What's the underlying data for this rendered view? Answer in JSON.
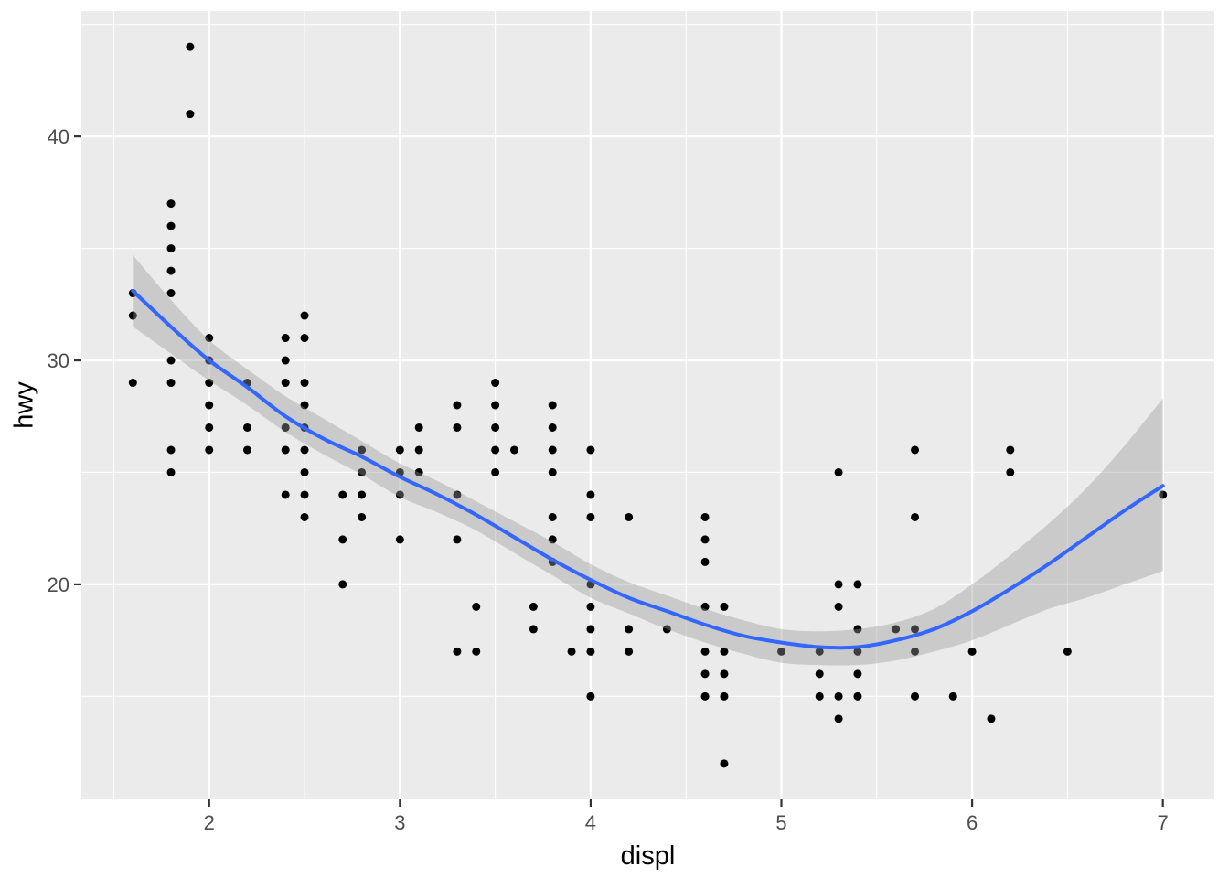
{
  "chart_data": {
    "type": "scatter",
    "title": "",
    "xlabel": "displ",
    "ylabel": "hwy",
    "legend": "none",
    "grid": true,
    "x_ticks": [
      2,
      3,
      4,
      5,
      6,
      7
    ],
    "y_ticks": [
      20,
      30,
      40
    ],
    "x_minor": [
      1.5,
      2.5,
      3.5,
      4.5,
      5.5,
      6.5
    ],
    "y_minor": [
      15,
      25,
      35,
      45
    ],
    "x_domain": [
      1.33,
      7.27
    ],
    "y_domain": [
      10.4,
      45.6
    ],
    "x_data_range": [
      1.6,
      7.0
    ],
    "y_data_range": [
      12,
      44
    ],
    "points": [
      [
        1.6,
        33
      ],
      [
        1.6,
        32
      ],
      [
        1.6,
        29
      ],
      [
        1.8,
        37
      ],
      [
        1.8,
        36
      ],
      [
        1.8,
        35
      ],
      [
        1.8,
        34
      ],
      [
        1.8,
        33
      ],
      [
        1.8,
        30
      ],
      [
        1.8,
        29
      ],
      [
        1.8,
        26
      ],
      [
        1.8,
        25
      ],
      [
        1.9,
        44
      ],
      [
        1.9,
        41
      ],
      [
        2.0,
        31
      ],
      [
        2.0,
        30
      ],
      [
        2.0,
        29
      ],
      [
        2.0,
        28
      ],
      [
        2.0,
        27
      ],
      [
        2.0,
        26
      ],
      [
        2.2,
        29
      ],
      [
        2.2,
        27
      ],
      [
        2.2,
        26
      ],
      [
        2.4,
        31
      ],
      [
        2.4,
        30
      ],
      [
        2.4,
        29
      ],
      [
        2.4,
        27
      ],
      [
        2.4,
        26
      ],
      [
        2.4,
        24
      ],
      [
        2.5,
        32
      ],
      [
        2.5,
        31
      ],
      [
        2.5,
        29
      ],
      [
        2.5,
        28
      ],
      [
        2.5,
        27
      ],
      [
        2.5,
        26
      ],
      [
        2.5,
        25
      ],
      [
        2.5,
        24
      ],
      [
        2.5,
        23
      ],
      [
        2.7,
        24
      ],
      [
        2.7,
        22
      ],
      [
        2.7,
        20
      ],
      [
        2.8,
        26
      ],
      [
        2.8,
        25
      ],
      [
        2.8,
        24
      ],
      [
        2.8,
        23
      ],
      [
        3.0,
        26
      ],
      [
        3.0,
        25
      ],
      [
        3.0,
        24
      ],
      [
        3.0,
        22
      ],
      [
        3.1,
        27
      ],
      [
        3.1,
        26
      ],
      [
        3.1,
        25
      ],
      [
        3.3,
        28
      ],
      [
        3.3,
        27
      ],
      [
        3.3,
        24
      ],
      [
        3.3,
        22
      ],
      [
        3.3,
        17
      ],
      [
        3.4,
        19
      ],
      [
        3.4,
        17
      ],
      [
        3.5,
        29
      ],
      [
        3.5,
        28
      ],
      [
        3.5,
        27
      ],
      [
        3.5,
        26
      ],
      [
        3.5,
        25
      ],
      [
        3.6,
        26
      ],
      [
        3.7,
        19
      ],
      [
        3.7,
        18
      ],
      [
        3.8,
        28
      ],
      [
        3.8,
        27
      ],
      [
        3.8,
        26
      ],
      [
        3.8,
        25
      ],
      [
        3.8,
        23
      ],
      [
        3.8,
        22
      ],
      [
        3.8,
        21
      ],
      [
        3.9,
        17
      ],
      [
        4.0,
        26
      ],
      [
        4.0,
        24
      ],
      [
        4.0,
        23
      ],
      [
        4.0,
        20
      ],
      [
        4.0,
        19
      ],
      [
        4.0,
        18
      ],
      [
        4.0,
        17
      ],
      [
        4.0,
        15
      ],
      [
        4.2,
        23
      ],
      [
        4.2,
        18
      ],
      [
        4.2,
        17
      ],
      [
        4.4,
        18
      ],
      [
        4.6,
        23
      ],
      [
        4.6,
        22
      ],
      [
        4.6,
        21
      ],
      [
        4.6,
        19
      ],
      [
        4.6,
        17
      ],
      [
        4.6,
        16
      ],
      [
        4.6,
        15
      ],
      [
        4.7,
        19
      ],
      [
        4.7,
        17
      ],
      [
        4.7,
        16
      ],
      [
        4.7,
        15
      ],
      [
        4.7,
        12
      ],
      [
        5.0,
        17
      ],
      [
        5.2,
        17
      ],
      [
        5.2,
        16
      ],
      [
        5.2,
        15
      ],
      [
        5.3,
        25
      ],
      [
        5.3,
        20
      ],
      [
        5.3,
        19
      ],
      [
        5.3,
        15
      ],
      [
        5.3,
        14
      ],
      [
        5.4,
        20
      ],
      [
        5.4,
        18
      ],
      [
        5.4,
        17
      ],
      [
        5.4,
        16
      ],
      [
        5.4,
        15
      ],
      [
        5.6,
        18
      ],
      [
        5.7,
        26
      ],
      [
        5.7,
        23
      ],
      [
        5.7,
        18
      ],
      [
        5.7,
        17
      ],
      [
        5.7,
        15
      ],
      [
        5.9,
        15
      ],
      [
        6.0,
        17
      ],
      [
        6.1,
        14
      ],
      [
        6.2,
        26
      ],
      [
        6.2,
        25
      ],
      [
        6.5,
        17
      ],
      [
        7.0,
        24
      ]
    ],
    "smooth": {
      "x": [
        1.6,
        1.8,
        2.0,
        2.2,
        2.4,
        2.6,
        2.8,
        3.0,
        3.2,
        3.4,
        3.6,
        3.8,
        4.0,
        4.2,
        4.4,
        4.6,
        4.8,
        5.0,
        5.2,
        5.4,
        5.6,
        5.8,
        6.0,
        6.2,
        6.4,
        6.6,
        6.8,
        7.0
      ],
      "y": [
        33.1,
        31.5,
        30.0,
        28.8,
        27.5,
        26.5,
        25.7,
        24.8,
        24.0,
        23.1,
        22.1,
        21.1,
        20.2,
        19.4,
        18.8,
        18.2,
        17.7,
        17.4,
        17.2,
        17.2,
        17.5,
        18.0,
        18.8,
        19.8,
        20.9,
        22.1,
        23.3,
        24.4
      ],
      "upper": [
        34.7,
        32.7,
        30.9,
        29.6,
        28.4,
        27.4,
        26.4,
        25.4,
        24.6,
        23.7,
        22.8,
        21.9,
        20.9,
        20.1,
        19.5,
        18.9,
        18.4,
        18.0,
        17.9,
        18.0,
        18.3,
        18.9,
        20.0,
        21.3,
        22.7,
        24.3,
        26.2,
        28.3
      ],
      "lower": [
        31.5,
        30.3,
        29.1,
        28.0,
        26.8,
        25.8,
        24.9,
        23.9,
        23.2,
        22.4,
        21.4,
        20.4,
        19.4,
        18.7,
        18.0,
        17.4,
        16.9,
        16.5,
        16.4,
        16.4,
        16.6,
        17.0,
        17.5,
        18.2,
        18.9,
        19.4,
        20.0,
        20.6
      ]
    },
    "colors": {
      "background": "#FFFFFF",
      "panel_background": "#EBEBEB",
      "grid_major": "#FFFFFF",
      "grid_minor": "#FFFFFF",
      "point": "#000000",
      "smooth_line": "#3366FF",
      "ribbon": "#999999",
      "ribbon_opacity": 0.4,
      "tick_label": "#4D4D4D",
      "tick_mark": "#333333",
      "axis_title": "#000000"
    }
  }
}
